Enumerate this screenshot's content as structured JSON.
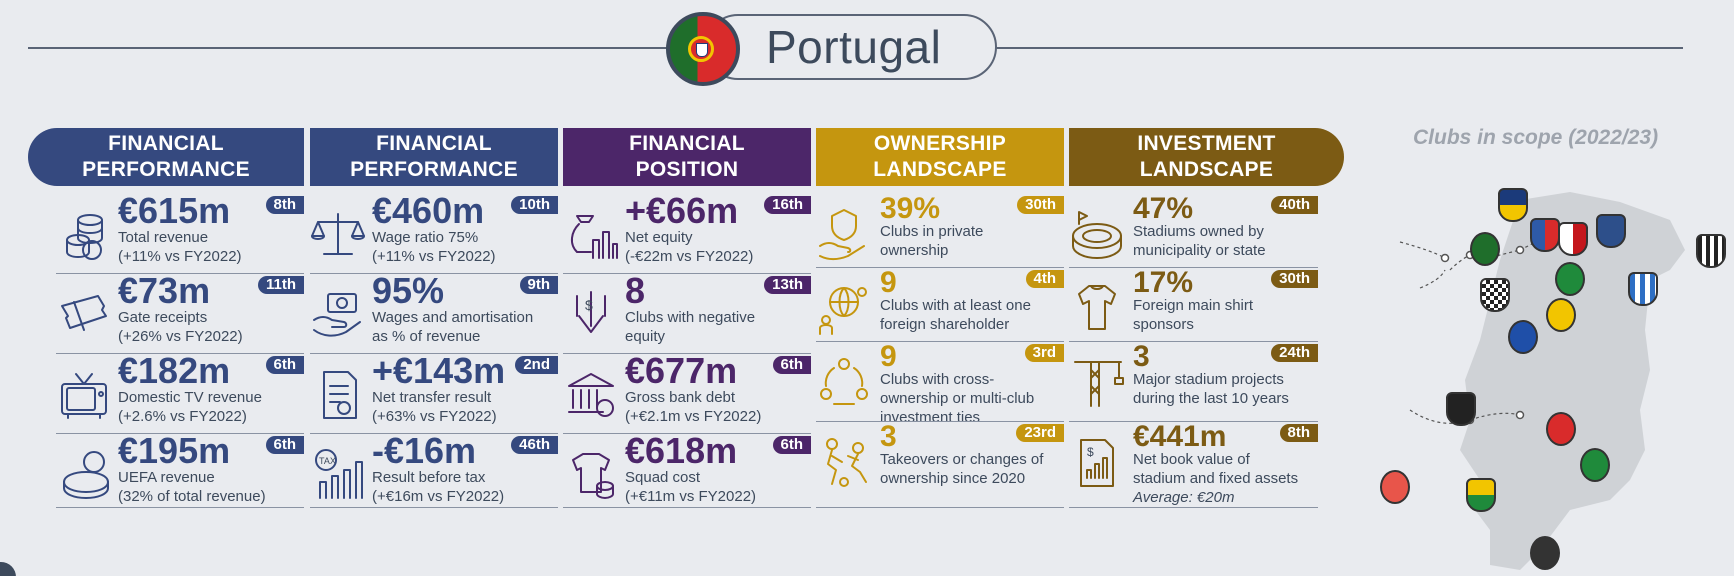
{
  "title": "Portugal",
  "colors": {
    "performance": "#35497f",
    "position": "#4c2669",
    "ownership": "#c5960f",
    "investment": "#7c5b14",
    "text": "#3d4a5c"
  },
  "columns": [
    {
      "header": "FINANCIAL\nPERFORMANCE",
      "rows": [
        {
          "icon": "coins-icon",
          "value": "€615m",
          "rank": "8th",
          "desc1": "Total revenue",
          "desc2": "(+11% vs FY2022)"
        },
        {
          "icon": "ticket-icon",
          "value": "€73m",
          "rank": "11th",
          "desc1": "Gate receipts",
          "desc2": "(+26% vs FY2022)"
        },
        {
          "icon": "television-icon",
          "value": "€182m",
          "rank": "6th",
          "desc1": "Domestic TV revenue",
          "desc2": "(+2.6% vs FY2022)"
        },
        {
          "icon": "uefa-money-icon",
          "value": "€195m",
          "rank": "6th",
          "desc1": "UEFA revenue",
          "desc2": "(32% of total revenue)"
        }
      ]
    },
    {
      "header": "FINANCIAL\nPERFORMANCE",
      "rows": [
        {
          "icon": "scales-icon",
          "value": "€460m",
          "rank": "10th",
          "desc1": "Wage ratio 75%",
          "desc2": "(+11% vs FY2022)"
        },
        {
          "icon": "hand-money-icon",
          "value": "95%",
          "rank": "9th",
          "desc1": "Wages and amortisation",
          "desc2": "as % of revenue"
        },
        {
          "icon": "document-icon",
          "value": "+€143m",
          "rank": "2nd",
          "desc1": "Net transfer result",
          "desc2": "(+63% vs FY2022)"
        },
        {
          "icon": "tax-chart-icon",
          "value": "-€16m",
          "rank": "46th",
          "desc1": "Result before tax",
          "desc2": "(+€16m vs FY2022)"
        }
      ]
    },
    {
      "header": "FINANCIAL\nPOSITION",
      "rows": [
        {
          "icon": "money-bag-chart-icon",
          "value": "+€66m",
          "rank": "16th",
          "desc1": "Net equity",
          "desc2": "(-€22m vs FY2022)"
        },
        {
          "icon": "down-arrow-dollar-icon",
          "value": "8",
          "rank": "13th",
          "desc1": "Clubs with negative",
          "desc2": "equity"
        },
        {
          "icon": "bank-icon",
          "value": "€677m",
          "rank": "6th",
          "desc1": "Gross bank debt",
          "desc2": "(+€2.1m vs FY2022)"
        },
        {
          "icon": "shirt-coins-icon",
          "value": "€618m",
          "rank": "6th",
          "desc1": "Squad cost",
          "desc2": "(+€11m vs FY2022)"
        }
      ]
    },
    {
      "header": "OWNERSHIP\nLANDSCAPE",
      "rows": [
        {
          "icon": "shield-hand-icon",
          "value": "39%",
          "rank": "30th",
          "desc1": "Clubs in private",
          "desc2": "ownership",
          "desc3": ""
        },
        {
          "icon": "globe-people-icon",
          "value": "9",
          "rank": "4th",
          "desc1": "Clubs with at least one",
          "desc2": "foreign shareholder",
          "desc3": ""
        },
        {
          "icon": "people-cycle-icon",
          "value": "9",
          "rank": "3rd",
          "desc1": "Clubs with cross-",
          "desc2": "ownership or multi-club",
          "desc3": "investment ties"
        },
        {
          "icon": "tackle-icon",
          "value": "3",
          "rank": "23rd",
          "desc1": "Takeovers or changes of",
          "desc2": "ownership since 2020",
          "desc3": ""
        }
      ]
    },
    {
      "header": "INVESTMENT\nLANDSCAPE",
      "rows": [
        {
          "icon": "stadium-icon",
          "value": "47%",
          "rank": "40th",
          "desc1": "Stadiums owned by",
          "desc2": "municipality or state",
          "desc3": ""
        },
        {
          "icon": "shirt-icon",
          "value": "17%",
          "rank": "30th",
          "desc1": "Foreign main shirt",
          "desc2": "sponsors",
          "desc3": ""
        },
        {
          "icon": "crane-icon",
          "value": "3",
          "rank": "24th",
          "desc1": "Major stadium projects",
          "desc2": "during the last 10 years",
          "desc3": ""
        },
        {
          "icon": "document-chart-icon",
          "value": "€441m",
          "rank": "8th",
          "desc1": "Net book value of",
          "desc2": "stadium and fixed assets",
          "desc3": "Average: €20m"
        }
      ]
    }
  ],
  "scope": {
    "title": "Clubs in scope (2022/23)"
  }
}
